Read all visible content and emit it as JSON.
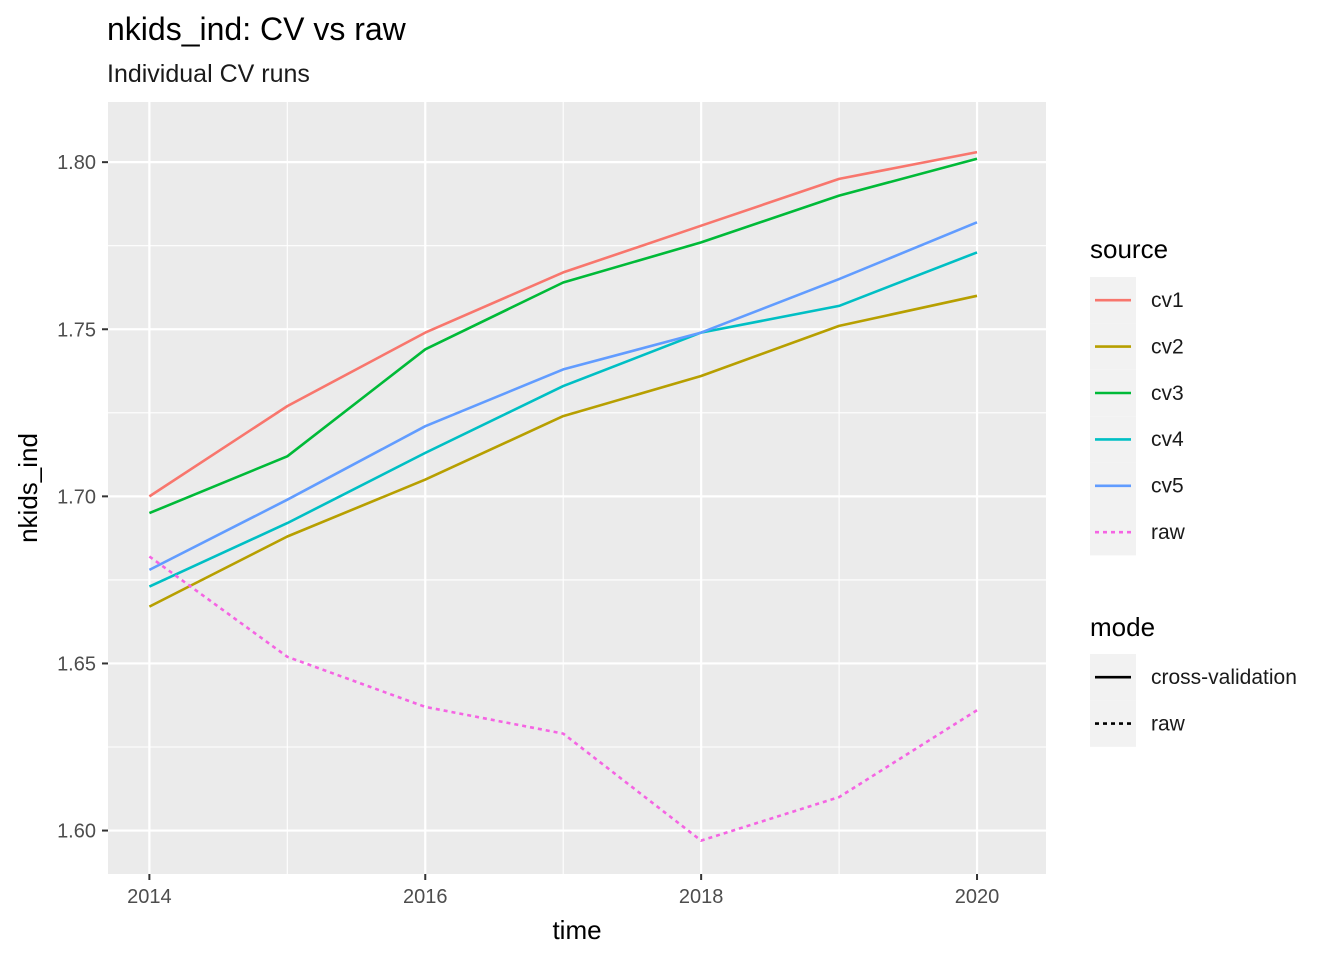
{
  "chart_data": {
    "type": "line",
    "title": "nkids_ind: CV vs raw",
    "subtitle": "Individual CV runs",
    "xlabel": "time",
    "ylabel": "nkids_ind",
    "x": [
      2014,
      2015,
      2016,
      2017,
      2018,
      2019,
      2020
    ],
    "xlim": [
      2013.7,
      2020.5
    ],
    "ylim": [
      1.587,
      1.818
    ],
    "x_ticks": [
      2014,
      2016,
      2018,
      2020
    ],
    "x_tick_labels": [
      "2014",
      "2016",
      "2018",
      "2020"
    ],
    "y_ticks": [
      1.6,
      1.65,
      1.7,
      1.75,
      1.8
    ],
    "y_tick_labels": [
      "1.60",
      "1.65",
      "1.70",
      "1.75",
      "1.80"
    ],
    "grid": true,
    "panel_background": "#ebebeb",
    "series": [
      {
        "name": "cv1",
        "mode": "cross-validation",
        "color": "#f8766d",
        "values": [
          1.7,
          1.727,
          1.749,
          1.767,
          1.781,
          1.795,
          1.803
        ]
      },
      {
        "name": "cv2",
        "mode": "cross-validation",
        "color": "#b79f00",
        "values": [
          1.667,
          1.688,
          1.705,
          1.724,
          1.736,
          1.751,
          1.76
        ]
      },
      {
        "name": "cv3",
        "mode": "cross-validation",
        "color": "#00ba38",
        "values": [
          1.695,
          1.712,
          1.744,
          1.764,
          1.776,
          1.79,
          1.801
        ]
      },
      {
        "name": "cv4",
        "mode": "cross-validation",
        "color": "#00bfc4",
        "values": [
          1.673,
          1.692,
          1.713,
          1.733,
          1.749,
          1.757,
          1.773
        ]
      },
      {
        "name": "cv5",
        "mode": "cross-validation",
        "color": "#619cff",
        "values": [
          1.678,
          1.699,
          1.721,
          1.738,
          1.749,
          1.765,
          1.782
        ]
      },
      {
        "name": "raw",
        "mode": "raw",
        "color": "#f564e3",
        "values": [
          1.682,
          1.652,
          1.637,
          1.629,
          1.597,
          1.61,
          1.636
        ]
      }
    ],
    "legends": [
      {
        "title": "source",
        "entries": [
          "cv1",
          "cv2",
          "cv3",
          "cv4",
          "cv5",
          "raw"
        ]
      },
      {
        "title": "mode",
        "entries": [
          "cross-validation",
          "raw"
        ]
      }
    ],
    "legend_position": "right"
  }
}
